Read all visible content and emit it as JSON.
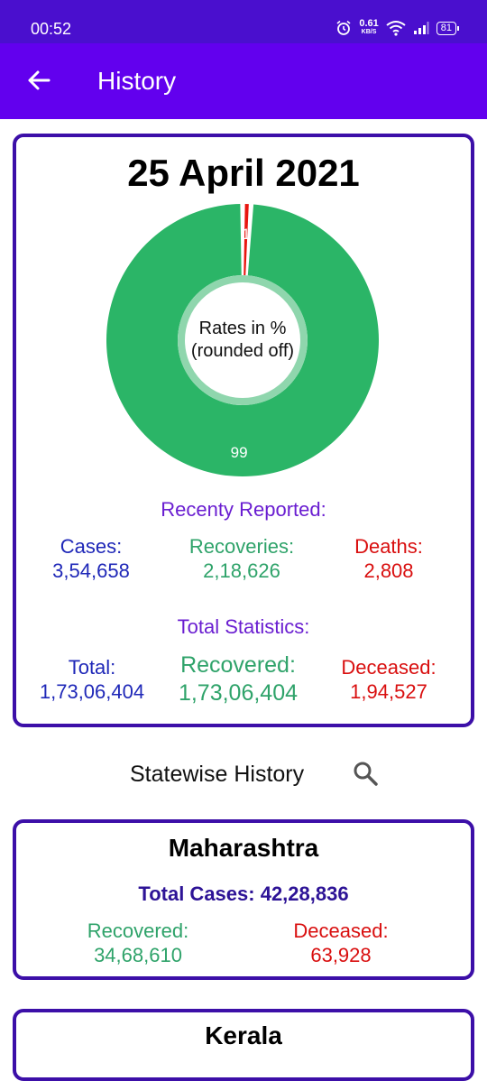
{
  "status_bar": {
    "time": "00:52",
    "speed_value": "0.61",
    "speed_unit": "KB/S",
    "battery": "81"
  },
  "app_bar": {
    "title": "History"
  },
  "summary": {
    "date": "25 April 2021",
    "donut_center_line1": "Rates in %",
    "donut_center_line2": "(rounded off)",
    "recent_label": "Recenty Reported:",
    "recent": {
      "cases_label": "Cases:",
      "cases_value": "3,54,658",
      "recoveries_label": "Recoveries:",
      "recoveries_value": "2,18,626",
      "deaths_label": "Deaths:",
      "deaths_value": "2,808"
    },
    "total_label": "Total Statistics:",
    "total": {
      "total_label": "Total:",
      "total_value": "1,73,06,404",
      "recovered_label": "Recovered:",
      "recovered_value": "1,73,06,404",
      "deceased_label": "Deceased:",
      "deceased_value": "1,94,527"
    }
  },
  "chart_data": {
    "type": "pie",
    "title": "",
    "slices": [
      {
        "label": "1",
        "value": 1,
        "color": "#e8150f"
      },
      {
        "label": "99",
        "value": 99,
        "color": "#2bb567"
      }
    ]
  },
  "statewise": {
    "title": "Statewise History",
    "states": [
      {
        "name": "Maharashtra",
        "total_cases": "Total Cases: 42,28,836",
        "recovered_label": "Recovered:",
        "recovered_value": "34,68,610",
        "deceased_label": "Deceased:",
        "deceased_value": "63,928"
      },
      {
        "name": "Kerala"
      }
    ]
  },
  "colors": {
    "primary": "#6200ee",
    "status_bar": "#4a0fce",
    "card_border": "#3c0fa8",
    "recovered": "#2fa36a",
    "deceased": "#d90f0f",
    "cases": "#1f28b8"
  }
}
